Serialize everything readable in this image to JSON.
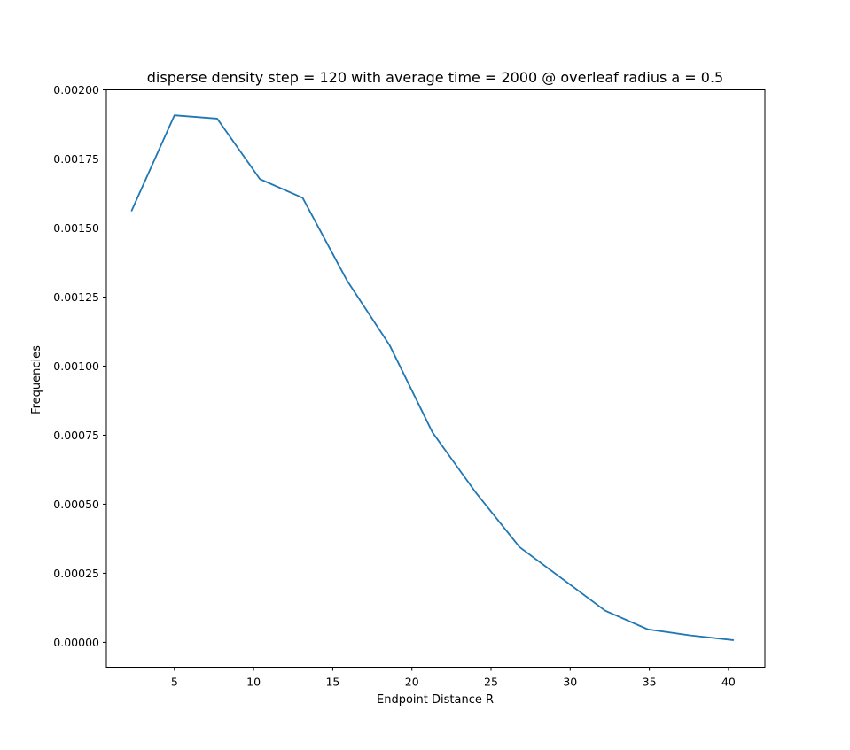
{
  "chart_data": {
    "type": "line",
    "title": "disperse density step = 120 with average time = 2000 @ overleaf radius a = 0.5",
    "xlabel": "Endpoint Distance R",
    "ylabel": "Frequencies",
    "xlim": [
      0.7,
      42.3
    ],
    "ylim": [
      -9e-05,
      0.002
    ],
    "xticks": [
      5,
      10,
      15,
      20,
      25,
      30,
      35,
      40
    ],
    "xtick_labels": [
      "5",
      "10",
      "15",
      "20",
      "25",
      "30",
      "35",
      "40"
    ],
    "yticks": [
      0,
      0.00025,
      0.0005,
      0.00075,
      0.001,
      0.00125,
      0.0015,
      0.00175,
      0.002
    ],
    "ytick_labels": [
      "0.00000",
      "0.00025",
      "0.00050",
      "0.00075",
      "0.00100",
      "0.00125",
      "0.00150",
      "0.00175",
      "0.00200"
    ],
    "grid": false,
    "series": [
      {
        "color": "#1f77b4",
        "x": [
          2.3,
          5.0,
          7.7,
          10.4,
          13.1,
          15.9,
          18.6,
          21.3,
          24.0,
          26.8,
          29.5,
          32.2,
          34.9,
          37.6,
          40.3
        ],
        "y": [
          0.001563,
          0.001908,
          0.001896,
          0.001677,
          0.001609,
          0.00131,
          0.001075,
          0.00076,
          0.000545,
          0.000345,
          0.00023,
          0.000115,
          4.7e-05,
          2.5e-05,
          8e-06
        ]
      }
    ]
  }
}
